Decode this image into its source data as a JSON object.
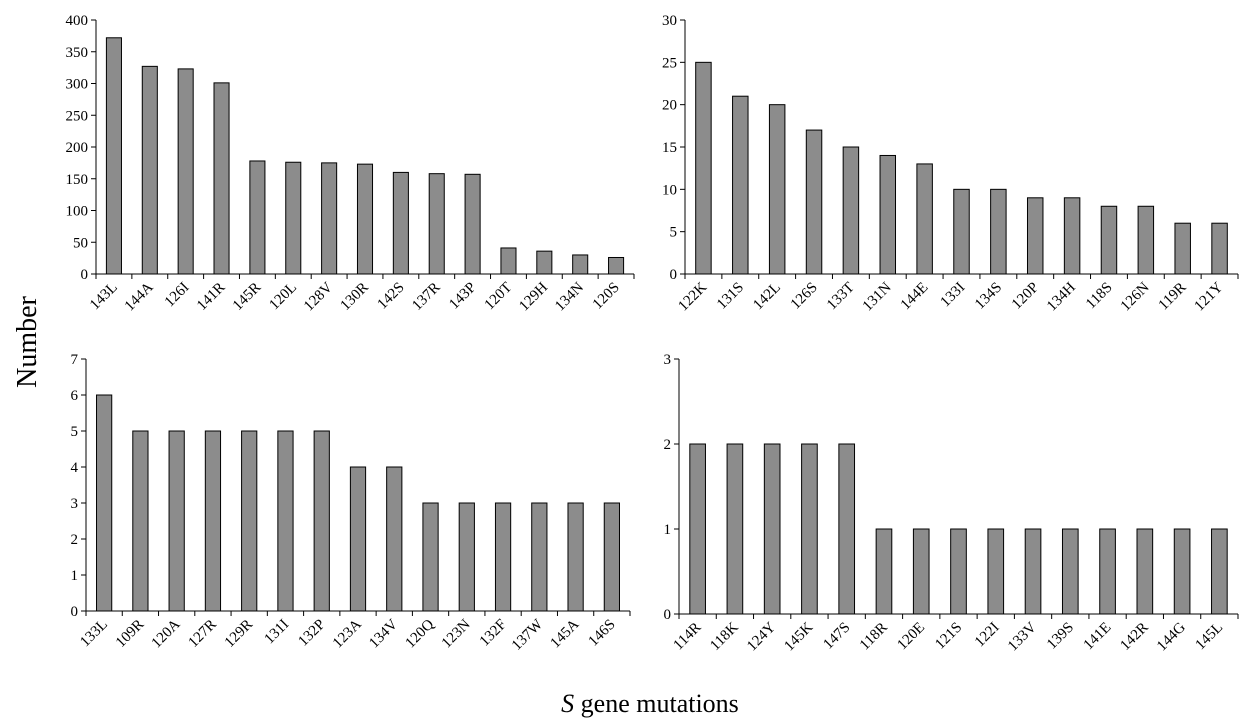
{
  "figure": {
    "ylabel": "Number",
    "xlabel_italic": "S",
    "xlabel_rest": " gene mutations"
  },
  "chart_data": [
    {
      "type": "bar",
      "title": "",
      "xlabel": "",
      "ylabel": "Number",
      "ylim": [
        0,
        400
      ],
      "yticks": [
        0,
        50,
        100,
        150,
        200,
        250,
        300,
        350,
        400
      ],
      "grid": false,
      "categories": [
        "143L",
        "144A",
        "126I",
        "141R",
        "145R",
        "120L",
        "128V",
        "130R",
        "142S",
        "137R",
        "143P",
        "120T",
        "129H",
        "134N",
        "120S"
      ],
      "values": [
        372,
        327,
        323,
        301,
        178,
        176,
        175,
        173,
        160,
        158,
        157,
        41,
        36,
        30,
        26
      ]
    },
    {
      "type": "bar",
      "title": "",
      "xlabel": "",
      "ylabel": "Number",
      "ylim": [
        0,
        30
      ],
      "yticks": [
        0,
        5,
        10,
        15,
        20,
        25,
        30
      ],
      "grid": false,
      "categories": [
        "122K",
        "131S",
        "142L",
        "126S",
        "133T",
        "131N",
        "144E",
        "133I",
        "134S",
        "120P",
        "134H",
        "118S",
        "126N",
        "119R",
        "121Y"
      ],
      "values": [
        25,
        21,
        20,
        17,
        15,
        14,
        13,
        10,
        10,
        9,
        9,
        8,
        8,
        6,
        6
      ]
    },
    {
      "type": "bar",
      "title": "",
      "xlabel": "",
      "ylabel": "Number",
      "ylim": [
        0,
        7
      ],
      "yticks": [
        0,
        1,
        2,
        3,
        4,
        5,
        6,
        7
      ],
      "grid": false,
      "categories": [
        "133L",
        "109R",
        "120A",
        "127R",
        "129R",
        "131I",
        "132P",
        "123A",
        "134V",
        "120Q",
        "123N",
        "132F",
        "137W",
        "145A",
        "146S"
      ],
      "values": [
        6,
        5,
        5,
        5,
        5,
        5,
        5,
        4,
        4,
        3,
        3,
        3,
        3,
        3,
        3
      ]
    },
    {
      "type": "bar",
      "title": "",
      "xlabel": "S gene mutations",
      "ylabel": "Number",
      "ylim": [
        0,
        3
      ],
      "yticks": [
        0,
        1,
        2,
        3
      ],
      "grid": false,
      "categories": [
        "114R",
        "118K",
        "124Y",
        "145K",
        "147S",
        "118R",
        "120E",
        "121S",
        "122I",
        "133V",
        "139S",
        "141E",
        "142R",
        "144G",
        "145L"
      ],
      "values": [
        2,
        2,
        2,
        2,
        2,
        1,
        1,
        1,
        1,
        1,
        1,
        1,
        1,
        1,
        1
      ]
    }
  ],
  "colors": {
    "bar_fill": "#8c8c8c",
    "bar_stroke": "#000000",
    "axis": "#000000"
  }
}
